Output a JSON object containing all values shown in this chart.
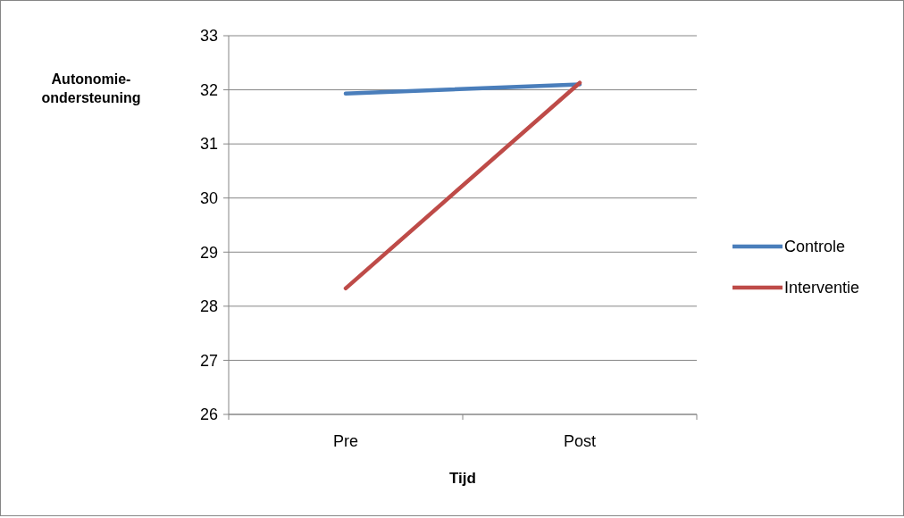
{
  "chart_data": {
    "type": "line",
    "xlabel": "Tijd",
    "ylabel": "Autonomie-ondersteuning",
    "categories": [
      "Pre",
      "Post"
    ],
    "series": [
      {
        "name": "Controle",
        "color": "#4a7ebb",
        "values": [
          31.93,
          32.1
        ]
      },
      {
        "name": "Interventie",
        "color": "#be4b48",
        "values": [
          28.33,
          32.13
        ]
      }
    ],
    "ylim": [
      26,
      33
    ],
    "yticks": [
      26,
      27,
      28,
      29,
      30,
      31,
      32,
      33
    ],
    "grid": "y",
    "legend": "right",
    "marker": "none",
    "line_style": "solid"
  }
}
